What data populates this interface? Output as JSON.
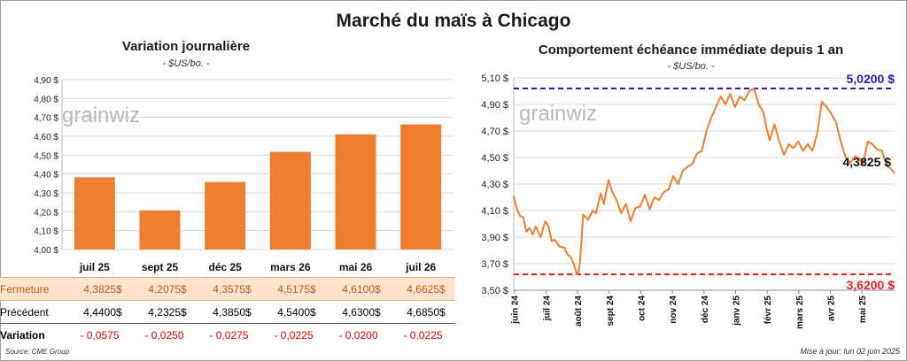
{
  "title": "Marché du maïs à Chicago",
  "source": "Source: CME Group",
  "update": "Mise à jour: lun 02 juin 2025",
  "watermark": "grainwiz",
  "left": {
    "title": "Variation journalière",
    "unit": "- $US/bo. -",
    "rows": {
      "close_label": "Fermeture",
      "prev_label": "Précédent",
      "var_label": "Variation",
      "currency": "$",
      "close": [
        "4,3825",
        "4,2075",
        "4,3575",
        "4,5175",
        "4,6100",
        "4,6625"
      ],
      "prev": [
        "4,4400",
        "4,2325",
        "4,3850",
        "4,5400",
        "4,6300",
        "4,6850"
      ],
      "var": [
        "- 0,0575",
        "- 0,0250",
        "- 0,0275",
        "- 0,0225",
        "- 0,0200",
        "- 0,0225"
      ]
    }
  },
  "right": {
    "title": "Comportement échéance immédiate depuis 1 an",
    "unit": "- $US/bo. -",
    "max_label": "5,0200 $",
    "min_label": "3,6200 $",
    "last_label": "4,3825 $"
  },
  "colors": {
    "bar": "#ed7d31",
    "line": "#ed7d31",
    "max": "#2a1fb5",
    "min": "#e82020",
    "grid": "#d9d9d9"
  },
  "chart_data": [
    {
      "type": "bar",
      "title": "Variation journalière",
      "categories": [
        "juil 25",
        "sept 25",
        "déc 25",
        "mars 26",
        "mai 26",
        "juil 26"
      ],
      "values": [
        4.3825,
        4.2075,
        4.3575,
        4.5175,
        4.61,
        4.6625
      ],
      "ylim": [
        4.0,
        4.9
      ],
      "yticks": [
        4.0,
        4.1,
        4.2,
        4.3,
        4.4,
        4.5,
        4.6,
        4.7,
        4.8,
        4.9
      ],
      "ytick_labels": [
        "4,00 $",
        "4,10 $",
        "4,20 $",
        "4,30 $",
        "4,40 $",
        "4,50 $",
        "4,60 $",
        "4,70 $",
        "4,80 $",
        "4,90 $"
      ],
      "grid": true
    },
    {
      "type": "line",
      "title": "Comportement échéance immédiate depuis 1 an",
      "x_tick_labels": [
        "juin 24",
        "juil 24",
        "août 24",
        "sept 24",
        "oct 24",
        "nov 24",
        "déc 24",
        "janv 25",
        "févr 25",
        "mars 25",
        "avr 25",
        "mai 25"
      ],
      "x_months": [
        0,
        1,
        2,
        3,
        4,
        5,
        6,
        7,
        8,
        9,
        10,
        11
      ],
      "x_range": [
        0,
        12.05
      ],
      "ylim": [
        3.5,
        5.1
      ],
      "yticks": [
        3.5,
        3.7,
        3.9,
        4.1,
        4.3,
        4.5,
        4.7,
        4.9,
        5.1
      ],
      "ytick_labels": [
        "3,50 $",
        "3,70 $",
        "3,90 $",
        "4,10 $",
        "4,30 $",
        "4,50 $",
        "4,70 $",
        "4,90 $",
        "5,10 $"
      ],
      "series": [
        {
          "x": [
            0.0,
            0.1,
            0.2,
            0.3,
            0.4,
            0.5,
            0.6,
            0.7,
            0.85,
            1.0,
            1.1,
            1.2,
            1.3,
            1.45,
            1.6,
            1.7,
            1.8,
            1.9,
            2.0,
            2.05,
            2.1,
            2.2,
            2.35,
            2.5,
            2.6,
            2.75,
            2.85,
            3.0,
            3.1,
            3.25,
            3.4,
            3.55,
            3.7,
            3.85,
            4.0,
            4.15,
            4.3,
            4.45,
            4.6,
            4.75,
            4.9,
            5.05,
            5.2,
            5.35,
            5.5,
            5.65,
            5.8,
            5.95,
            6.1,
            6.25,
            6.4,
            6.55,
            6.7,
            6.85,
            7.0,
            7.15,
            7.3,
            7.45,
            7.6,
            7.75,
            7.9,
            8.0,
            8.1,
            8.25,
            8.4,
            8.55,
            8.7,
            8.85,
            9.0,
            9.15,
            9.3,
            9.45,
            9.6,
            9.75,
            9.9,
            10.05,
            10.2,
            10.35,
            10.5,
            10.65,
            10.8,
            10.95,
            11.05,
            11.2,
            11.35,
            11.5,
            11.65,
            11.8,
            11.95,
            12.05
          ],
          "y": [
            4.21,
            4.11,
            4.06,
            4.05,
            3.94,
            3.97,
            3.92,
            3.98,
            3.9,
            4.02,
            3.98,
            3.87,
            3.88,
            3.83,
            3.82,
            3.77,
            3.75,
            3.7,
            3.62,
            3.64,
            3.72,
            4.07,
            4.03,
            4.1,
            4.08,
            4.23,
            4.15,
            4.33,
            4.25,
            4.18,
            4.08,
            4.15,
            4.02,
            4.12,
            4.13,
            4.22,
            4.11,
            4.2,
            4.18,
            4.24,
            4.26,
            4.36,
            4.3,
            4.4,
            4.43,
            4.45,
            4.53,
            4.55,
            4.7,
            4.8,
            4.88,
            4.96,
            4.9,
            4.98,
            4.88,
            4.96,
            4.93,
            5.0,
            5.02,
            4.9,
            4.84,
            4.72,
            4.63,
            4.75,
            4.62,
            4.52,
            4.6,
            4.57,
            4.62,
            4.55,
            4.6,
            4.55,
            4.68,
            4.92,
            4.88,
            4.83,
            4.76,
            4.62,
            4.5,
            4.46,
            4.51,
            4.49,
            4.45,
            4.62,
            4.6,
            4.56,
            4.55,
            4.44,
            4.41,
            4.38
          ]
        }
      ],
      "reference_lines": [
        {
          "label": "5,0200 $",
          "value": 5.02
        },
        {
          "label": "3,6200 $",
          "value": 3.62
        }
      ],
      "last_value_label": "4,3825 $",
      "grid": true
    }
  ]
}
